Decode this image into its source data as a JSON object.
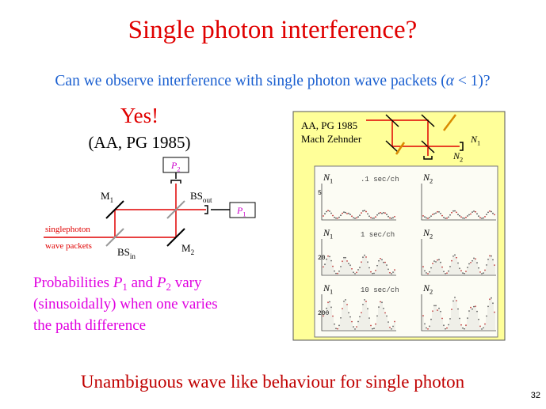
{
  "title": "Single photon interference?",
  "question": {
    "before": "Can we observe interference with single photon wave packets (",
    "symbol": "α",
    "after": " < 1)?"
  },
  "answer": "Yes!",
  "reference": "(AA, PG 1985)",
  "setup": {
    "p2": {
      "main": "P",
      "sub": "2"
    },
    "p1": {
      "main": "P",
      "sub": "1"
    },
    "m1": {
      "main": "M",
      "sub": "1"
    },
    "m2": {
      "main": "M",
      "sub": "2"
    },
    "bs_out": {
      "main": "BS",
      "sub": "out"
    },
    "bs_in": {
      "main": "BS",
      "sub": "in"
    },
    "source": [
      "singlephoton",
      "wave packets"
    ]
  },
  "note": {
    "line1": [
      "Probabilities ",
      "P",
      "1",
      " and ",
      "P",
      "2",
      " vary"
    ],
    "line2": "(sinusoidally) when one varies",
    "line3": "the path difference"
  },
  "experiment": {
    "reference": "AA, PG 1985",
    "name": "Mach Zehnder",
    "n1": {
      "main": "N",
      "sub": "1"
    },
    "n2": {
      "main": "N",
      "sub": "2"
    },
    "panels": [
      {
        "rate": ".1 sec/ch",
        "scale": "5"
      },
      {
        "rate": "1 sec/ch",
        "scale": "20"
      },
      {
        "rate": "10 sec/ch",
        "scale": "200"
      }
    ]
  },
  "conclusion": "Unambiguous wave like behaviour for single photon",
  "page": "32"
}
